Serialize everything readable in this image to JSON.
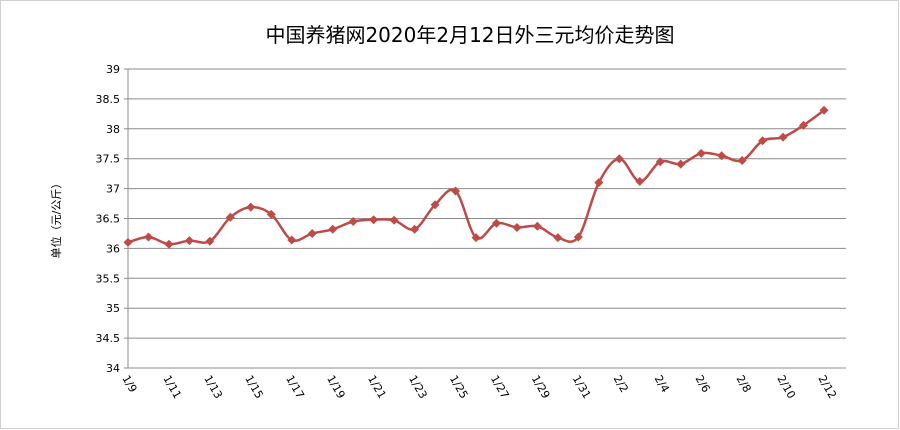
{
  "chart_data": {
    "type": "line",
    "title": "中国养猪网2020年2月12日外三元均价走势图",
    "y_label": "单位（元/公斤）",
    "categories": [
      "1/9",
      null,
      "1/11",
      null,
      "1/13",
      null,
      "1/15",
      null,
      "1/17",
      null,
      "1/19",
      null,
      "1/21",
      null,
      "1/23",
      null,
      "1/25",
      null,
      "1/27",
      null,
      "1/29",
      null,
      "1/31",
      null,
      "2/2",
      null,
      "2/4",
      null,
      "2/6",
      null,
      "2/8",
      null,
      "2/10",
      null,
      "2/12"
    ],
    "values": [
      36.1,
      36.19,
      36.07,
      36.13,
      36.12,
      36.52,
      36.69,
      36.57,
      36.14,
      36.25,
      36.32,
      36.45,
      36.48,
      36.47,
      36.32,
      36.73,
      36.96,
      36.18,
      36.42,
      36.35,
      36.37,
      36.18,
      36.19,
      37.1,
      37.5,
      37.12,
      37.45,
      37.41,
      37.59,
      37.55,
      37.47,
      37.8,
      37.86,
      38.06,
      38.31
    ],
    "color": "#be4b48",
    "ylim": [
      34,
      39
    ],
    "yticks": [
      34,
      34.5,
      35,
      35.5,
      36,
      36.5,
      37,
      37.5,
      38,
      38.5,
      39
    ],
    "grid": true
  }
}
